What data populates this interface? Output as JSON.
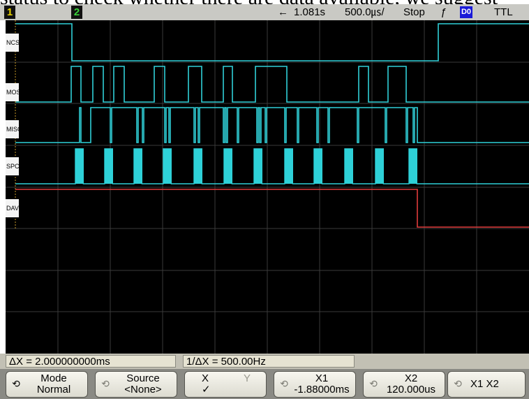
{
  "top_cut_text": "status to check whether there are data available, we suggest",
  "status_bar": {
    "channel1": "1",
    "channel2": "2",
    "time_ref_arrow": "←",
    "time_ref": "1.081s",
    "timebase": "500.0㎲/",
    "run_state": "Stop",
    "trigger_slope": "ƒ",
    "trigger_source": "D0",
    "logic_level": "TTL"
  },
  "signals": [
    {
      "label": "NCS"
    },
    {
      "label": "MOSI"
    },
    {
      "label": "MISO"
    },
    {
      "label": "SPCK"
    },
    {
      "label": "DAV"
    }
  ],
  "colors": {
    "trace": "#2fd0d8",
    "dav_trace": "#e03c3c",
    "screen_bg": "#000000",
    "grid": "#3a3a3a"
  },
  "measurements": {
    "delta_x": "ΔX = 2.000000000ms",
    "inv_delta_x": "1/ΔX = 500.00Hz"
  },
  "softkeys": [
    {
      "line1": "Mode",
      "line2": "Normal",
      "icon": "rotate-knob-icon"
    },
    {
      "line1": "Source",
      "line2": "<None>",
      "icon": "rotate-knob-icon"
    },
    {
      "line1": "X",
      "line1_alt": "Y",
      "line2": "✓"
    },
    {
      "line1": "X1",
      "line2": "-1.88000ms",
      "icon": "rotate-knob-icon"
    },
    {
      "line1": "X2",
      "line2": "120.000us",
      "icon": "rotate-knob-icon"
    },
    {
      "line1": "X1 X2",
      "icon": "rotate-knob-icon"
    }
  ]
}
